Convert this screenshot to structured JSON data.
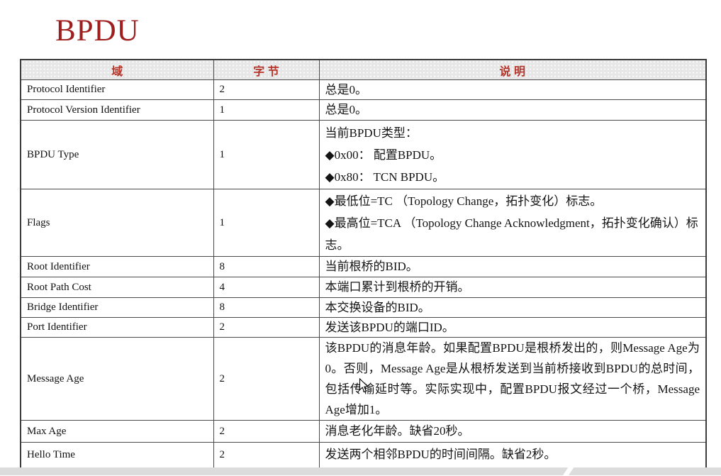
{
  "title": {
    "text": "BPDU",
    "color": "#9e1e1e"
  },
  "table": {
    "headers": [
      {
        "label": "域"
      },
      {
        "label": "字 节"
      },
      {
        "label": "说 明"
      }
    ],
    "header_text_color": "#b3352a",
    "rows": [
      {
        "field": "Protocol Identifier",
        "bytes": "2",
        "type": "single",
        "desc": [
          "总是0。"
        ]
      },
      {
        "field": "Protocol Version Identifier",
        "bytes": "1",
        "type": "single",
        "desc": [
          "总是0。"
        ]
      },
      {
        "field": "BPDU Type",
        "bytes": "1",
        "type": "multi",
        "desc": [
          "当前BPDU类型：",
          "◆0x00： 配置BPDU。",
          "◆0x80： TCN BPDU。"
        ]
      },
      {
        "field": "Flags",
        "bytes": "1",
        "type": "multi",
        "desc": [
          "◆最低位=TC （Topology Change，拓扑变化）标志。",
          "◆最高位=TCA （Topology Change Acknowledgment，拓扑变化确认）标志。"
        ]
      },
      {
        "field": "Root Identifier",
        "bytes": "8",
        "type": "single",
        "desc": [
          "当前根桥的BID。"
        ]
      },
      {
        "field": "Root Path Cost",
        "bytes": "4",
        "type": "single",
        "desc": [
          "本端口累计到根桥的开销。"
        ]
      },
      {
        "field": "Bridge Identifier",
        "bytes": "8",
        "type": "single",
        "desc": [
          "本交换设备的BID。"
        ]
      },
      {
        "field": "Port Identifier",
        "bytes": "2",
        "type": "single",
        "desc": [
          "发送该BPDU的端口ID。"
        ]
      },
      {
        "field": "Message Age",
        "bytes": "2",
        "type": "para",
        "desc": [
          "该BPDU的消息年龄。如果配置BPDU是根桥发出的，则Message Age为0。否则，Message Age是从根桥发送到当前桥接收到BPDU的总时间，包括传输延时等。实际实现中，配置BPDU报文经过一个桥，Message Age增加1。"
        ]
      },
      {
        "field": "Max Age",
        "bytes": "2",
        "type": "single",
        "desc": [
          "消息老化年龄。缺省20秒。"
        ]
      },
      {
        "field": "Hello Time",
        "bytes": "2",
        "type": "single",
        "desc": [
          "发送两个相邻BPDU的时间间隔。缺省2秒。"
        ]
      }
    ]
  },
  "footer": {
    "bar_color": "#dcdcdc",
    "accent_color": "#ffffff"
  }
}
